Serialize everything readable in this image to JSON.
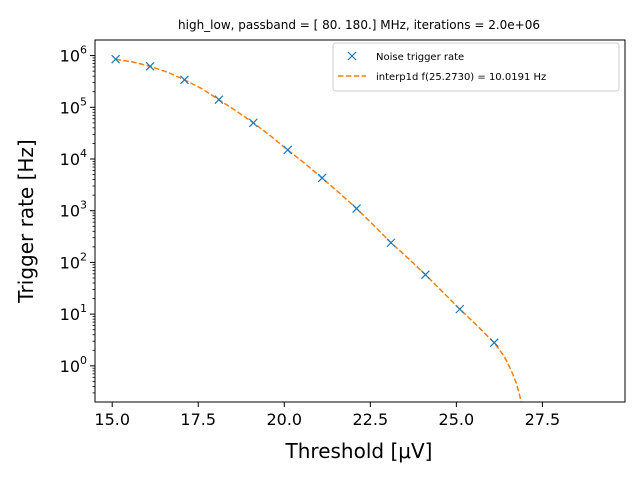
{
  "chart_data": {
    "type": "line",
    "title": "high_low, passband = [ 80. 180.] MHz, iterations = 2.0e+06",
    "xlabel": "Threshold [μV]",
    "ylabel": "Trigger rate [Hz]",
    "xlim": [
      14.5,
      29.9
    ],
    "ylim": [
      0.2,
      2000000
    ],
    "yscale": "log",
    "xticks": [
      15.0,
      17.5,
      20.0,
      22.5,
      25.0,
      27.5
    ],
    "xtick_labels": [
      "15.0",
      "17.5",
      "20.0",
      "22.5",
      "25.0",
      "27.5"
    ],
    "yticks": [
      1,
      10,
      100,
      1000,
      10000,
      100000,
      1000000
    ],
    "ytick_bases": [
      "10",
      "10",
      "10",
      "10",
      "10",
      "10",
      "10"
    ],
    "ytick_exponents": [
      "0",
      "1",
      "2",
      "3",
      "4",
      "5",
      "6"
    ],
    "legend_position": "upper right",
    "grid": false,
    "series": [
      {
        "name": "Noise trigger rate",
        "style": "markers",
        "marker": "x",
        "color": "#1f77b4",
        "x": [
          15.1,
          16.1,
          17.1,
          18.1,
          19.1,
          20.1,
          21.1,
          22.1,
          23.1,
          24.1,
          25.1,
          26.1
        ],
        "y": [
          850000,
          620000,
          340000,
          140000,
          50000,
          15000,
          4300,
          1100,
          240,
          58,
          12.5,
          2.8
        ]
      },
      {
        "name": "interp1d f(25.2730) = 10.0191 Hz",
        "style": "dashed",
        "color": "#ff7f0e",
        "x": [
          15.1,
          15.6,
          16.1,
          16.6,
          17.1,
          17.6,
          18.1,
          18.6,
          19.1,
          19.6,
          20.1,
          20.6,
          21.1,
          21.6,
          22.1,
          22.6,
          23.1,
          23.6,
          24.1,
          24.6,
          25.1,
          25.6,
          26.1,
          26.4,
          26.6,
          26.75,
          26.85,
          26.88
        ],
        "y": [
          850000,
          750000,
          620000,
          480000,
          340000,
          230000,
          140000,
          85000,
          50000,
          28000,
          15000,
          8200,
          4300,
          2200,
          1100,
          520,
          240,
          120,
          58,
          27,
          12.5,
          6.0,
          2.8,
          1.5,
          0.8,
          0.45,
          0.25,
          0.2
        ]
      }
    ]
  }
}
